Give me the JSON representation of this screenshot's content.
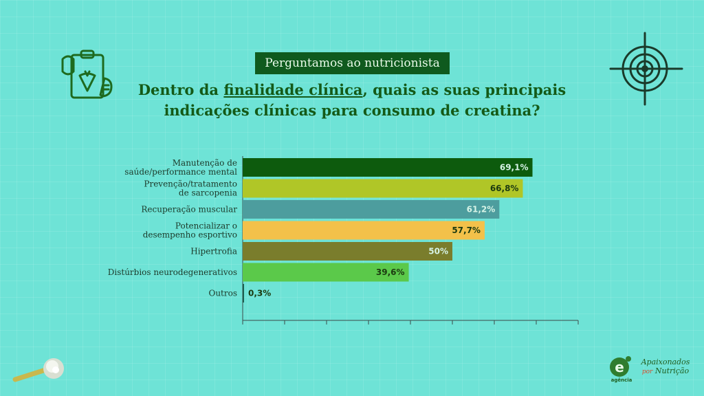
{
  "header": {
    "badge": "Perguntamos ao nutricionista",
    "title_pre": "Dentro da ",
    "title_underlined": "finalidade clínica",
    "title_post": ", quais as suas principais indicações clínicas para consumo de creatina?"
  },
  "icons": [
    "clipboard-carrot-icon",
    "target-icon",
    "scoop-powder-icon"
  ],
  "logos": {
    "agency_letter": "e",
    "agency_caption": "agência",
    "brand_line1": "Apaixonados",
    "brand_accent": "por",
    "brand_line2": "Nutrição"
  },
  "chart_data": {
    "type": "bar",
    "orientation": "horizontal",
    "categories": [
      "Manutenção de saúde/performance mental",
      "Prevenção/tratamento de sarcopenia",
      "Recuperação muscular",
      "Potencializar o desempenho esportivo",
      "Hipertrofia",
      "Distúrbios neurodegenerativos",
      "Outros"
    ],
    "category_lines": [
      [
        "Manutenção de",
        "saúde/performance mental"
      ],
      [
        "Prevenção/tratamento",
        "de sarcopenia"
      ],
      [
        "Recuperação muscular"
      ],
      [
        "Potencializar o",
        "desempenho esportivo"
      ],
      [
        "Hipertrofia"
      ],
      [
        "Distúrbios neurodegenerativos"
      ],
      [
        "Outros"
      ]
    ],
    "values": [
      69.1,
      66.8,
      61.2,
      57.7,
      50,
      39.6,
      0.3
    ],
    "labels": [
      "69,1%",
      "66,8%",
      "61,2%",
      "57,7%",
      "50%",
      "39,6%",
      "0,3%"
    ],
    "bar_colors": [
      "#0d5b0d",
      "#b0c627",
      "#4d9d9e",
      "#f3c14a",
      "#7a7d2c",
      "#5bc94a",
      "#1d5f4f"
    ],
    "label_colors": [
      "#d6f3e6",
      "#1c3a10",
      "#d6f3e6",
      "#1c3a10",
      "#d6f3e6",
      "#1c3a10",
      "#1c3a10"
    ],
    "label_inside": [
      true,
      true,
      true,
      true,
      true,
      true,
      false
    ],
    "xlim": [
      0,
      80
    ],
    "tick_count": 8,
    "grid": false
  }
}
